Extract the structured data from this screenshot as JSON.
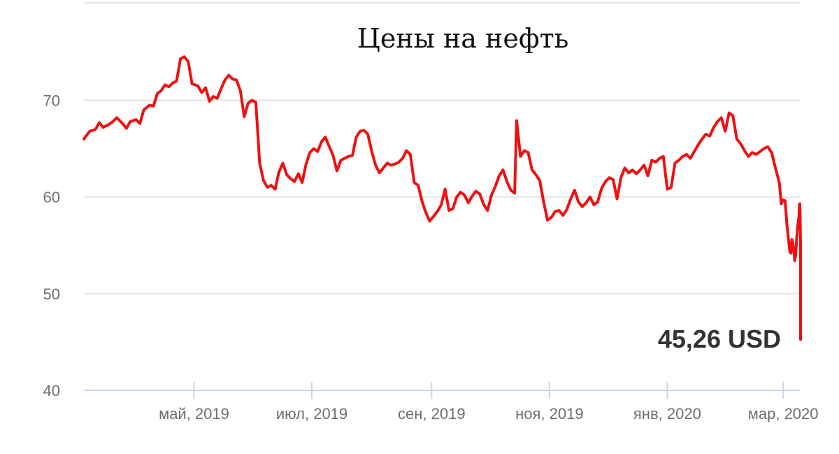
{
  "chart_data": {
    "type": "line",
    "title": "Цены на нефть",
    "xlabel": "",
    "ylabel": "",
    "ylim": [
      40,
      76
    ],
    "yticks": [
      "40",
      "50",
      "60",
      "70"
    ],
    "xticks": [
      "май, 2019",
      "июл, 2019",
      "сен, 2019",
      "ноя, 2019",
      "янв, 2020",
      "мар, 2020"
    ],
    "xtick_dates": [
      "2019-05-01",
      "2019-07-01",
      "2019-09-01",
      "2019-11-01",
      "2020-01-01",
      "2020-03-01"
    ],
    "xrange": [
      "2019-03-05",
      "2020-03-10"
    ],
    "grid": true,
    "legend": "none",
    "line_color": "#ee1111",
    "last_value_label": "45,26 USD",
    "series": [
      {
        "points": [
          [
            "2019-03-05",
            66.0
          ],
          [
            "2019-03-08",
            66.8
          ],
          [
            "2019-03-11",
            67.0
          ],
          [
            "2019-03-13",
            67.7
          ],
          [
            "2019-03-15",
            67.2
          ],
          [
            "2019-03-18",
            67.5
          ],
          [
            "2019-03-20",
            67.8
          ],
          [
            "2019-03-22",
            68.2
          ],
          [
            "2019-03-25",
            67.6
          ],
          [
            "2019-03-27",
            67.1
          ],
          [
            "2019-03-29",
            67.8
          ],
          [
            "2019-04-01",
            68.0
          ],
          [
            "2019-04-03",
            67.6
          ],
          [
            "2019-04-05",
            69.0
          ],
          [
            "2019-04-08",
            69.5
          ],
          [
            "2019-04-10",
            69.4
          ],
          [
            "2019-04-12",
            70.7
          ],
          [
            "2019-04-14",
            71.0
          ],
          [
            "2019-04-16",
            71.6
          ],
          [
            "2019-04-18",
            71.4
          ],
          [
            "2019-04-20",
            71.8
          ],
          [
            "2019-04-22",
            72.0
          ],
          [
            "2019-04-24",
            74.3
          ],
          [
            "2019-04-26",
            74.5
          ],
          [
            "2019-04-28",
            74.0
          ],
          [
            "2019-04-30",
            71.7
          ],
          [
            "2019-05-03",
            71.5
          ],
          [
            "2019-05-05",
            70.8
          ],
          [
            "2019-05-07",
            71.3
          ],
          [
            "2019-05-09",
            69.9
          ],
          [
            "2019-05-11",
            70.4
          ],
          [
            "2019-05-13",
            70.2
          ],
          [
            "2019-05-15",
            71.2
          ],
          [
            "2019-05-17",
            72.1
          ],
          [
            "2019-05-19",
            72.6
          ],
          [
            "2019-05-21",
            72.2
          ],
          [
            "2019-05-23",
            72.1
          ],
          [
            "2019-05-25",
            71.0
          ],
          [
            "2019-05-27",
            68.3
          ],
          [
            "2019-05-29",
            69.7
          ],
          [
            "2019-05-31",
            70.0
          ],
          [
            "2019-06-02",
            69.8
          ],
          [
            "2019-06-04",
            63.5
          ],
          [
            "2019-06-06",
            61.7
          ],
          [
            "2019-06-08",
            61.0
          ],
          [
            "2019-06-10",
            61.2
          ],
          [
            "2019-06-12",
            60.8
          ],
          [
            "2019-06-14",
            62.6
          ],
          [
            "2019-06-16",
            63.5
          ],
          [
            "2019-06-18",
            62.3
          ],
          [
            "2019-06-20",
            61.9
          ],
          [
            "2019-06-22",
            61.6
          ],
          [
            "2019-06-24",
            62.4
          ],
          [
            "2019-06-26",
            61.5
          ],
          [
            "2019-06-28",
            63.4
          ],
          [
            "2019-06-30",
            64.6
          ],
          [
            "2019-07-02",
            65.0
          ],
          [
            "2019-07-04",
            64.7
          ],
          [
            "2019-07-06",
            65.7
          ],
          [
            "2019-07-08",
            66.2
          ],
          [
            "2019-07-10",
            65.2
          ],
          [
            "2019-07-12",
            64.3
          ],
          [
            "2019-07-14",
            62.7
          ],
          [
            "2019-07-16",
            63.8
          ],
          [
            "2019-07-18",
            64.0
          ],
          [
            "2019-07-20",
            64.2
          ],
          [
            "2019-07-22",
            64.3
          ],
          [
            "2019-07-24",
            66.2
          ],
          [
            "2019-07-26",
            66.8
          ],
          [
            "2019-07-28",
            66.9
          ],
          [
            "2019-07-30",
            66.5
          ],
          [
            "2019-08-01",
            64.7
          ],
          [
            "2019-08-03",
            63.3
          ],
          [
            "2019-08-05",
            62.5
          ],
          [
            "2019-08-07",
            63.0
          ],
          [
            "2019-08-09",
            63.5
          ],
          [
            "2019-08-11",
            63.3
          ],
          [
            "2019-08-13",
            63.4
          ],
          [
            "2019-08-15",
            63.6
          ],
          [
            "2019-08-17",
            64.0
          ],
          [
            "2019-08-19",
            64.8
          ],
          [
            "2019-08-21",
            64.4
          ],
          [
            "2019-08-23",
            61.5
          ],
          [
            "2019-08-25",
            61.2
          ],
          [
            "2019-08-27",
            59.6
          ],
          [
            "2019-08-29",
            58.4
          ],
          [
            "2019-08-31",
            57.5
          ],
          [
            "2019-09-02",
            58.0
          ],
          [
            "2019-09-04",
            58.5
          ],
          [
            "2019-09-06",
            59.2
          ],
          [
            "2019-09-08",
            60.8
          ],
          [
            "2019-09-10",
            58.6
          ],
          [
            "2019-09-12",
            58.8
          ],
          [
            "2019-09-14",
            60.0
          ],
          [
            "2019-09-16",
            60.5
          ],
          [
            "2019-09-18",
            60.2
          ],
          [
            "2019-09-20",
            59.4
          ],
          [
            "2019-09-22",
            60.1
          ],
          [
            "2019-09-24",
            60.6
          ],
          [
            "2019-09-26",
            60.3
          ],
          [
            "2019-09-28",
            59.2
          ],
          [
            "2019-09-30",
            58.6
          ],
          [
            "2019-10-02",
            60.2
          ],
          [
            "2019-10-04",
            61.1
          ],
          [
            "2019-10-06",
            62.2
          ],
          [
            "2019-10-08",
            62.8
          ],
          [
            "2019-10-10",
            61.6
          ],
          [
            "2019-10-12",
            60.7
          ],
          [
            "2019-10-14",
            60.4
          ],
          [
            "2019-10-15",
            67.9
          ],
          [
            "2019-10-17",
            64.2
          ],
          [
            "2019-10-19",
            64.8
          ],
          [
            "2019-10-21",
            64.6
          ],
          [
            "2019-10-23",
            62.8
          ],
          [
            "2019-10-25",
            62.3
          ],
          [
            "2019-10-27",
            61.7
          ],
          [
            "2019-10-29",
            59.5
          ],
          [
            "2019-10-31",
            57.6
          ],
          [
            "2019-11-02",
            57.9
          ],
          [
            "2019-11-04",
            58.5
          ],
          [
            "2019-11-06",
            58.6
          ],
          [
            "2019-11-08",
            58.1
          ],
          [
            "2019-11-10",
            58.7
          ],
          [
            "2019-11-12",
            59.8
          ],
          [
            "2019-11-14",
            60.7
          ],
          [
            "2019-11-16",
            59.5
          ],
          [
            "2019-11-18",
            59.0
          ],
          [
            "2019-11-20",
            59.4
          ],
          [
            "2019-11-22",
            60.0
          ],
          [
            "2019-11-24",
            59.2
          ],
          [
            "2019-11-26",
            59.5
          ],
          [
            "2019-11-28",
            60.9
          ],
          [
            "2019-11-30",
            61.6
          ],
          [
            "2019-12-02",
            62.0
          ],
          [
            "2019-12-04",
            61.8
          ],
          [
            "2019-12-06",
            59.8
          ],
          [
            "2019-12-08",
            62.0
          ],
          [
            "2019-12-10",
            63.0
          ],
          [
            "2019-12-12",
            62.5
          ],
          [
            "2019-12-14",
            62.8
          ],
          [
            "2019-12-16",
            62.4
          ],
          [
            "2019-12-18",
            62.8
          ],
          [
            "2019-12-20",
            63.3
          ],
          [
            "2019-12-22",
            62.2
          ],
          [
            "2019-12-24",
            63.8
          ],
          [
            "2019-12-26",
            63.6
          ],
          [
            "2019-12-28",
            64.0
          ],
          [
            "2019-12-30",
            64.2
          ],
          [
            "2020-01-01",
            60.8
          ],
          [
            "2020-01-03",
            61.0
          ],
          [
            "2020-01-05",
            63.5
          ],
          [
            "2020-01-07",
            63.8
          ],
          [
            "2020-01-09",
            64.2
          ],
          [
            "2020-01-11",
            64.4
          ],
          [
            "2020-01-13",
            64.0
          ],
          [
            "2020-01-15",
            64.7
          ],
          [
            "2020-01-17",
            65.4
          ],
          [
            "2020-01-19",
            66.0
          ],
          [
            "2020-01-21",
            66.5
          ],
          [
            "2020-01-23",
            66.3
          ],
          [
            "2020-01-25",
            67.2
          ],
          [
            "2020-01-27",
            67.8
          ],
          [
            "2020-01-29",
            68.2
          ],
          [
            "2020-01-31",
            66.8
          ],
          [
            "2020-02-02",
            68.7
          ],
          [
            "2020-02-04",
            68.4
          ],
          [
            "2020-02-06",
            66.0
          ],
          [
            "2020-02-08",
            65.5
          ],
          [
            "2020-02-10",
            64.8
          ],
          [
            "2020-02-12",
            64.2
          ],
          [
            "2020-02-14",
            64.6
          ],
          [
            "2020-02-16",
            64.4
          ],
          [
            "2020-02-18",
            64.7
          ],
          [
            "2020-02-20",
            65.0
          ],
          [
            "2020-02-22",
            65.2
          ],
          [
            "2020-02-24",
            64.6
          ],
          [
            "2020-02-26",
            63.0
          ],
          [
            "2020-02-28",
            61.5
          ],
          [
            "2020-02-29",
            59.3
          ],
          [
            "2020-03-01",
            59.7
          ],
          [
            "2020-03-02",
            59.6
          ],
          [
            "2020-03-03",
            57.0
          ],
          [
            "2020-03-04",
            55.2
          ],
          [
            "2020-03-04",
            54.3
          ],
          [
            "2020-03-05",
            54.2
          ],
          [
            "2020-03-05",
            55.6
          ],
          [
            "2020-03-06",
            55.3
          ],
          [
            "2020-03-06",
            54.5
          ],
          [
            "2020-03-07",
            53.4
          ],
          [
            "2020-03-07",
            54.0
          ],
          [
            "2020-03-08",
            55.8
          ],
          [
            "2020-03-08",
            56.5
          ],
          [
            "2020-03-08",
            57.2
          ],
          [
            "2020-03-09",
            57.7
          ],
          [
            "2020-03-09",
            58.0
          ],
          [
            "2020-03-09",
            59.1
          ],
          [
            "2020-03-09",
            59.3
          ],
          [
            "2020-03-09",
            58.3
          ],
          [
            "2020-03-10",
            55.0
          ],
          [
            "2020-03-10",
            53.0
          ],
          [
            "2020-03-10",
            51.0
          ],
          [
            "2020-03-10",
            50.0
          ],
          [
            "2020-03-10",
            52.5
          ],
          [
            "2020-03-10",
            51.8
          ],
          [
            "2020-03-10",
            50.2
          ],
          [
            "2020-03-10",
            45.26
          ]
        ]
      }
    ]
  }
}
